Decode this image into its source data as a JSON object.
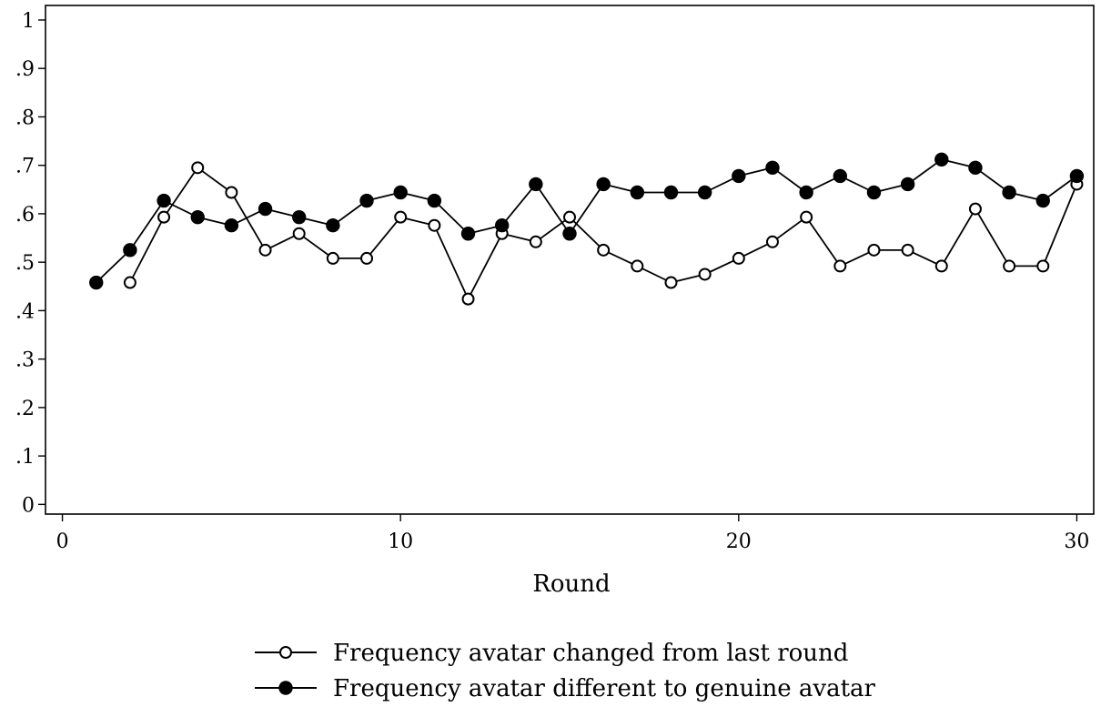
{
  "chart_data": {
    "type": "line",
    "title": "",
    "xlabel": "Round",
    "ylabel": "",
    "xlim": [
      -0.5,
      30.5
    ],
    "ylim": [
      -0.02,
      1.03
    ],
    "x_ticks": [
      0,
      10,
      20,
      30
    ],
    "x_tick_labels": [
      "0",
      "10",
      "20",
      "30"
    ],
    "y_ticks": [
      0,
      0.1,
      0.2,
      0.3,
      0.4,
      0.5,
      0.6,
      0.7,
      0.8,
      0.9,
      1
    ],
    "y_tick_labels": [
      "0",
      ".1",
      ".2",
      ".3",
      ".4",
      ".5",
      ".6",
      ".7",
      ".8",
      ".9",
      "1"
    ],
    "grid": false,
    "legend_position": "bottom",
    "series": [
      {
        "name": "Frequency avatar changed from last round",
        "marker": "hollow-circle",
        "color": "#000000",
        "x": [
          2,
          3,
          4,
          5,
          6,
          7,
          8,
          9,
          10,
          11,
          12,
          13,
          14,
          15,
          16,
          17,
          18,
          19,
          20,
          21,
          22,
          23,
          24,
          25,
          26,
          27,
          28,
          29,
          30
        ],
        "y": [
          0.458,
          0.593,
          0.695,
          0.644,
          0.525,
          0.559,
          0.508,
          0.508,
          0.593,
          0.576,
          0.424,
          0.559,
          0.542,
          0.593,
          0.525,
          0.492,
          0.458,
          0.475,
          0.508,
          0.542,
          0.593,
          0.492,
          0.525,
          0.525,
          0.492,
          0.61,
          0.492,
          0.492,
          0.661
        ]
      },
      {
        "name": "Frequency avatar different to genuine avatar",
        "marker": "filled-circle",
        "color": "#000000",
        "x": [
          1,
          2,
          3,
          4,
          5,
          6,
          7,
          8,
          9,
          10,
          11,
          12,
          13,
          14,
          15,
          16,
          17,
          18,
          19,
          20,
          21,
          22,
          23,
          24,
          25,
          26,
          27,
          28,
          29,
          30
        ],
        "y": [
          0.458,
          0.525,
          0.627,
          0.593,
          0.576,
          0.61,
          0.593,
          0.576,
          0.627,
          0.644,
          0.627,
          0.559,
          0.576,
          0.661,
          0.559,
          0.661,
          0.644,
          0.644,
          0.644,
          0.678,
          0.695,
          0.644,
          0.678,
          0.644,
          0.661,
          0.712,
          0.695,
          0.644,
          0.627,
          0.678
        ]
      }
    ]
  }
}
